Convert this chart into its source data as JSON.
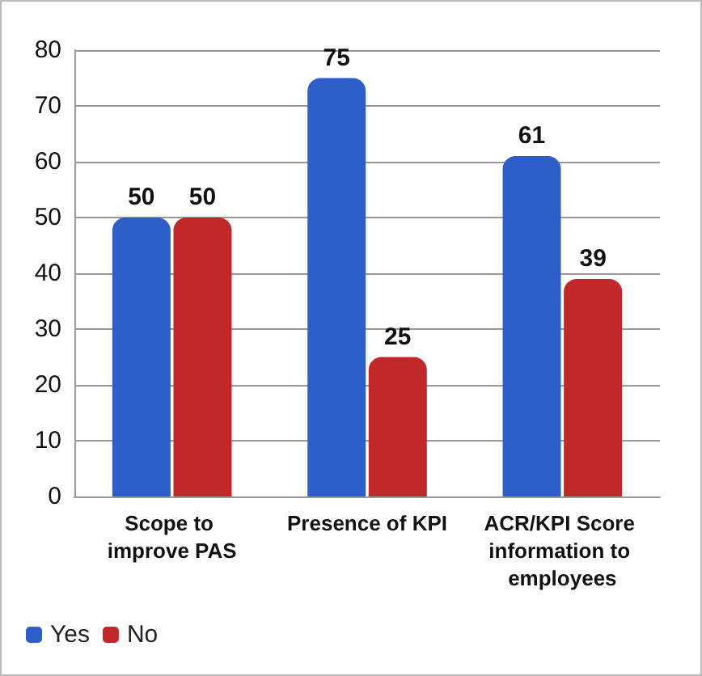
{
  "chart_data": {
    "type": "bar",
    "categories": [
      "Scope to improve PAS",
      "Presence of KPI",
      "ACR/KPI Score information to employees"
    ],
    "series": [
      {
        "name": "Yes",
        "color": "#2e5fc9",
        "values": [
          50,
          75,
          61
        ]
      },
      {
        "name": "No",
        "color": "#c0282a",
        "values": [
          50,
          25,
          39
        ]
      }
    ],
    "ylim": [
      0,
      80
    ],
    "yticks": [
      0,
      10,
      20,
      30,
      40,
      50,
      60,
      70,
      80
    ],
    "grid": true,
    "legend": "bottom left",
    "data_labels": true
  }
}
